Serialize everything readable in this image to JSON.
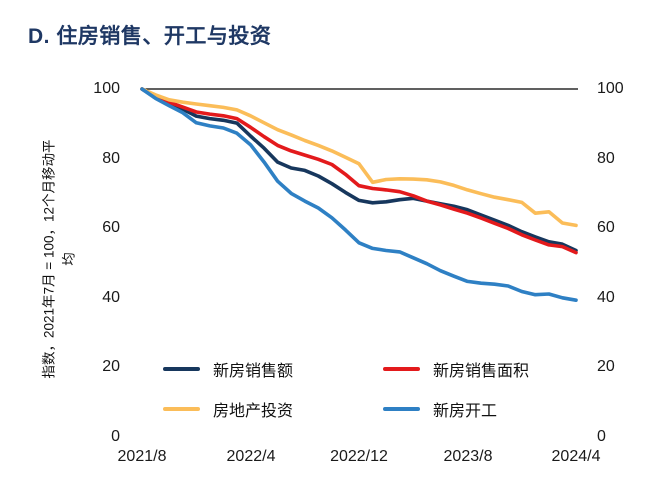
{
  "title": "D. 住房销售、开工与投资",
  "colors": {
    "title": "#1f3864",
    "axis_line": "#000000",
    "tick_text": "#1a1a1a"
  },
  "chart_data": {
    "type": "line",
    "title": "D. 住房销售、开工与投资",
    "y_axis_title_line1": "指数，2021年7月 = 100，12个月移动平",
    "y_axis_title_line2": "均",
    "ylim": [
      0,
      100
    ],
    "y_ticks": [
      0,
      20,
      40,
      60,
      80,
      100
    ],
    "grid": "top-line-only",
    "legend_position": "bottom-two-columns",
    "x": [
      "2021/8",
      "2021/9",
      "2021/10",
      "2021/11",
      "2021/12",
      "2022/1",
      "2022/2",
      "2022/3",
      "2022/4",
      "2022/5",
      "2022/6",
      "2022/7",
      "2022/8",
      "2022/9",
      "2022/10",
      "2022/11",
      "2022/12",
      "2023/1",
      "2023/2",
      "2023/3",
      "2023/4",
      "2023/5",
      "2023/6",
      "2023/7",
      "2023/8",
      "2023/9",
      "2023/10",
      "2023/11",
      "2023/12",
      "2024/1",
      "2024/2",
      "2024/3",
      "2024/4"
    ],
    "x_tick_labels": [
      "2021/8",
      "2022/4",
      "2022/12",
      "2023/8",
      "2024/4"
    ],
    "series": [
      {
        "key": "new-home-sales-value",
        "name": "新房销售额",
        "color": "#17375d",
        "values": [
          100,
          97.5,
          95.8,
          94.2,
          92.2,
          91.5,
          91.0,
          90.2,
          86.5,
          83.0,
          79.0,
          77.3,
          76.6,
          75.0,
          72.8,
          70.3,
          68.0,
          67.3,
          67.6,
          68.2,
          68.6,
          67.8,
          67.0,
          66.3,
          65.3,
          63.8,
          62.3,
          60.8,
          59.0,
          57.5,
          56.1,
          55.4,
          53.6
        ]
      },
      {
        "key": "new-home-sales-area",
        "name": "新房销售面积",
        "color": "#e31a1c",
        "values": [
          100,
          97.8,
          96.2,
          94.8,
          93.4,
          92.8,
          92.3,
          91.5,
          89.0,
          86.3,
          83.8,
          82.2,
          81.0,
          79.8,
          78.3,
          75.5,
          72.2,
          71.4,
          71.0,
          70.5,
          69.3,
          67.8,
          66.7,
          65.5,
          64.3,
          62.9,
          61.4,
          59.9,
          58.1,
          56.6,
          55.2,
          54.7,
          53.0
        ]
      },
      {
        "key": "real-estate-investment",
        "name": "房地产投资",
        "color": "#fbbd59",
        "values": [
          100,
          98.3,
          96.9,
          96.2,
          95.7,
          95.2,
          94.7,
          94.0,
          92.3,
          90.3,
          88.3,
          86.8,
          85.2,
          83.8,
          82.2,
          80.4,
          78.5,
          73.2,
          74.0,
          74.2,
          74.1,
          73.9,
          73.3,
          72.3,
          71.0,
          69.9,
          68.9,
          68.2,
          67.4,
          64.3,
          64.7,
          61.5,
          60.8
        ]
      },
      {
        "key": "new-home-starts",
        "name": "新房开工",
        "color": "#2e80c4",
        "values": [
          100,
          97.3,
          95.2,
          93.2,
          90.3,
          89.4,
          88.8,
          87.3,
          84.0,
          79.0,
          73.5,
          70.0,
          67.8,
          65.8,
          63.0,
          59.5,
          55.8,
          54.2,
          53.6,
          53.2,
          51.5,
          49.8,
          47.8,
          46.2,
          44.7,
          44.2,
          43.9,
          43.4,
          41.8,
          40.9,
          41.1,
          40.0,
          39.3
        ]
      }
    ]
  }
}
